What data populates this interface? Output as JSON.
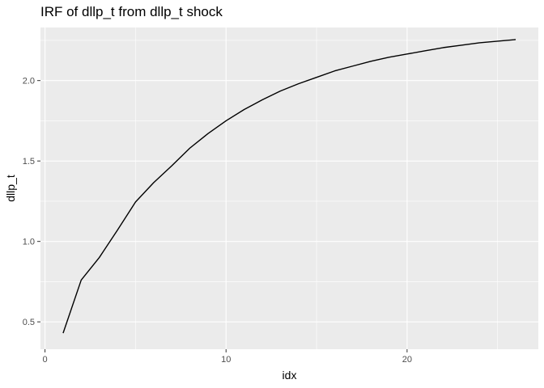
{
  "chart_data": {
    "type": "line",
    "title": "IRF of dllp_t from dllp_t shock",
    "xlabel": "idx",
    "ylabel": "dllp_t",
    "xlim": [
      -0.25,
      27.25
    ],
    "ylim": [
      0.33,
      2.33
    ],
    "x_ticks": [
      0,
      10,
      20
    ],
    "x_tick_labels": [
      "0",
      "10",
      "20"
    ],
    "y_ticks": [
      0.5,
      1.0,
      1.5,
      2.0
    ],
    "y_tick_labels": [
      "0.5",
      "1.0",
      "1.5",
      "2.0"
    ],
    "x_minor_ticks": [
      5,
      15,
      25
    ],
    "y_minor_ticks": [
      0.75,
      1.25,
      1.75,
      2.25
    ],
    "grid": true,
    "panel_background": "#ebebeb",
    "grid_color": "#ffffff",
    "line_color": "#000000",
    "series": [
      {
        "x": [
          1,
          2,
          3,
          4,
          5,
          6,
          7,
          8,
          9,
          10,
          11,
          12,
          13,
          14,
          15,
          16,
          17,
          18,
          19,
          20,
          21,
          22,
          23,
          24,
          25,
          26
        ],
        "values": [
          0.43,
          0.76,
          0.9,
          1.07,
          1.245,
          1.365,
          1.47,
          1.58,
          1.67,
          1.75,
          1.82,
          1.88,
          1.935,
          1.98,
          2.02,
          2.06,
          2.09,
          2.12,
          2.145,
          2.165,
          2.185,
          2.205,
          2.22,
          2.235,
          2.245,
          2.255
        ]
      }
    ]
  }
}
